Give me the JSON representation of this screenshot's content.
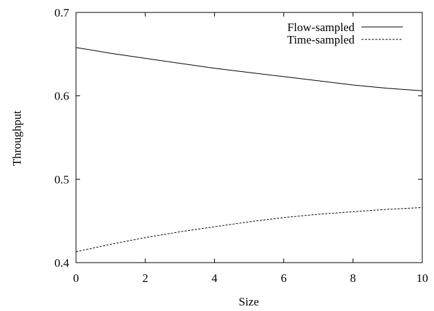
{
  "chart_data": {
    "type": "line",
    "title": "",
    "xlabel": "Size",
    "ylabel": "Throughput",
    "xlim": [
      0,
      10
    ],
    "ylim": [
      0.4,
      0.7
    ],
    "xticks": [
      0,
      2,
      4,
      6,
      8,
      10
    ],
    "yticks": [
      0.4,
      0.5,
      0.6,
      0.7
    ],
    "xtick_labels": [
      "0",
      "2",
      "4",
      "6",
      "8",
      "10"
    ],
    "ytick_labels": [
      "0.4",
      "0.5",
      "0.6",
      "0.7"
    ],
    "grid": false,
    "legend_position": "top-right",
    "series": [
      {
        "name": "Flow-sampled",
        "line_style": "solid",
        "color": "#000000",
        "x": [
          0,
          1,
          2,
          3,
          4,
          5,
          6,
          7,
          8,
          9,
          10
        ],
        "y": [
          0.658,
          0.651,
          0.645,
          0.639,
          0.633,
          0.628,
          0.623,
          0.618,
          0.613,
          0.609,
          0.606
        ]
      },
      {
        "name": "Time-sampled",
        "line_style": "dashed",
        "color": "#000000",
        "x": [
          0,
          1,
          2,
          3,
          4,
          5,
          6,
          7,
          8,
          9,
          10
        ],
        "y": [
          0.413,
          0.422,
          0.43,
          0.437,
          0.443,
          0.449,
          0.454,
          0.458,
          0.461,
          0.464,
          0.466
        ]
      }
    ]
  }
}
